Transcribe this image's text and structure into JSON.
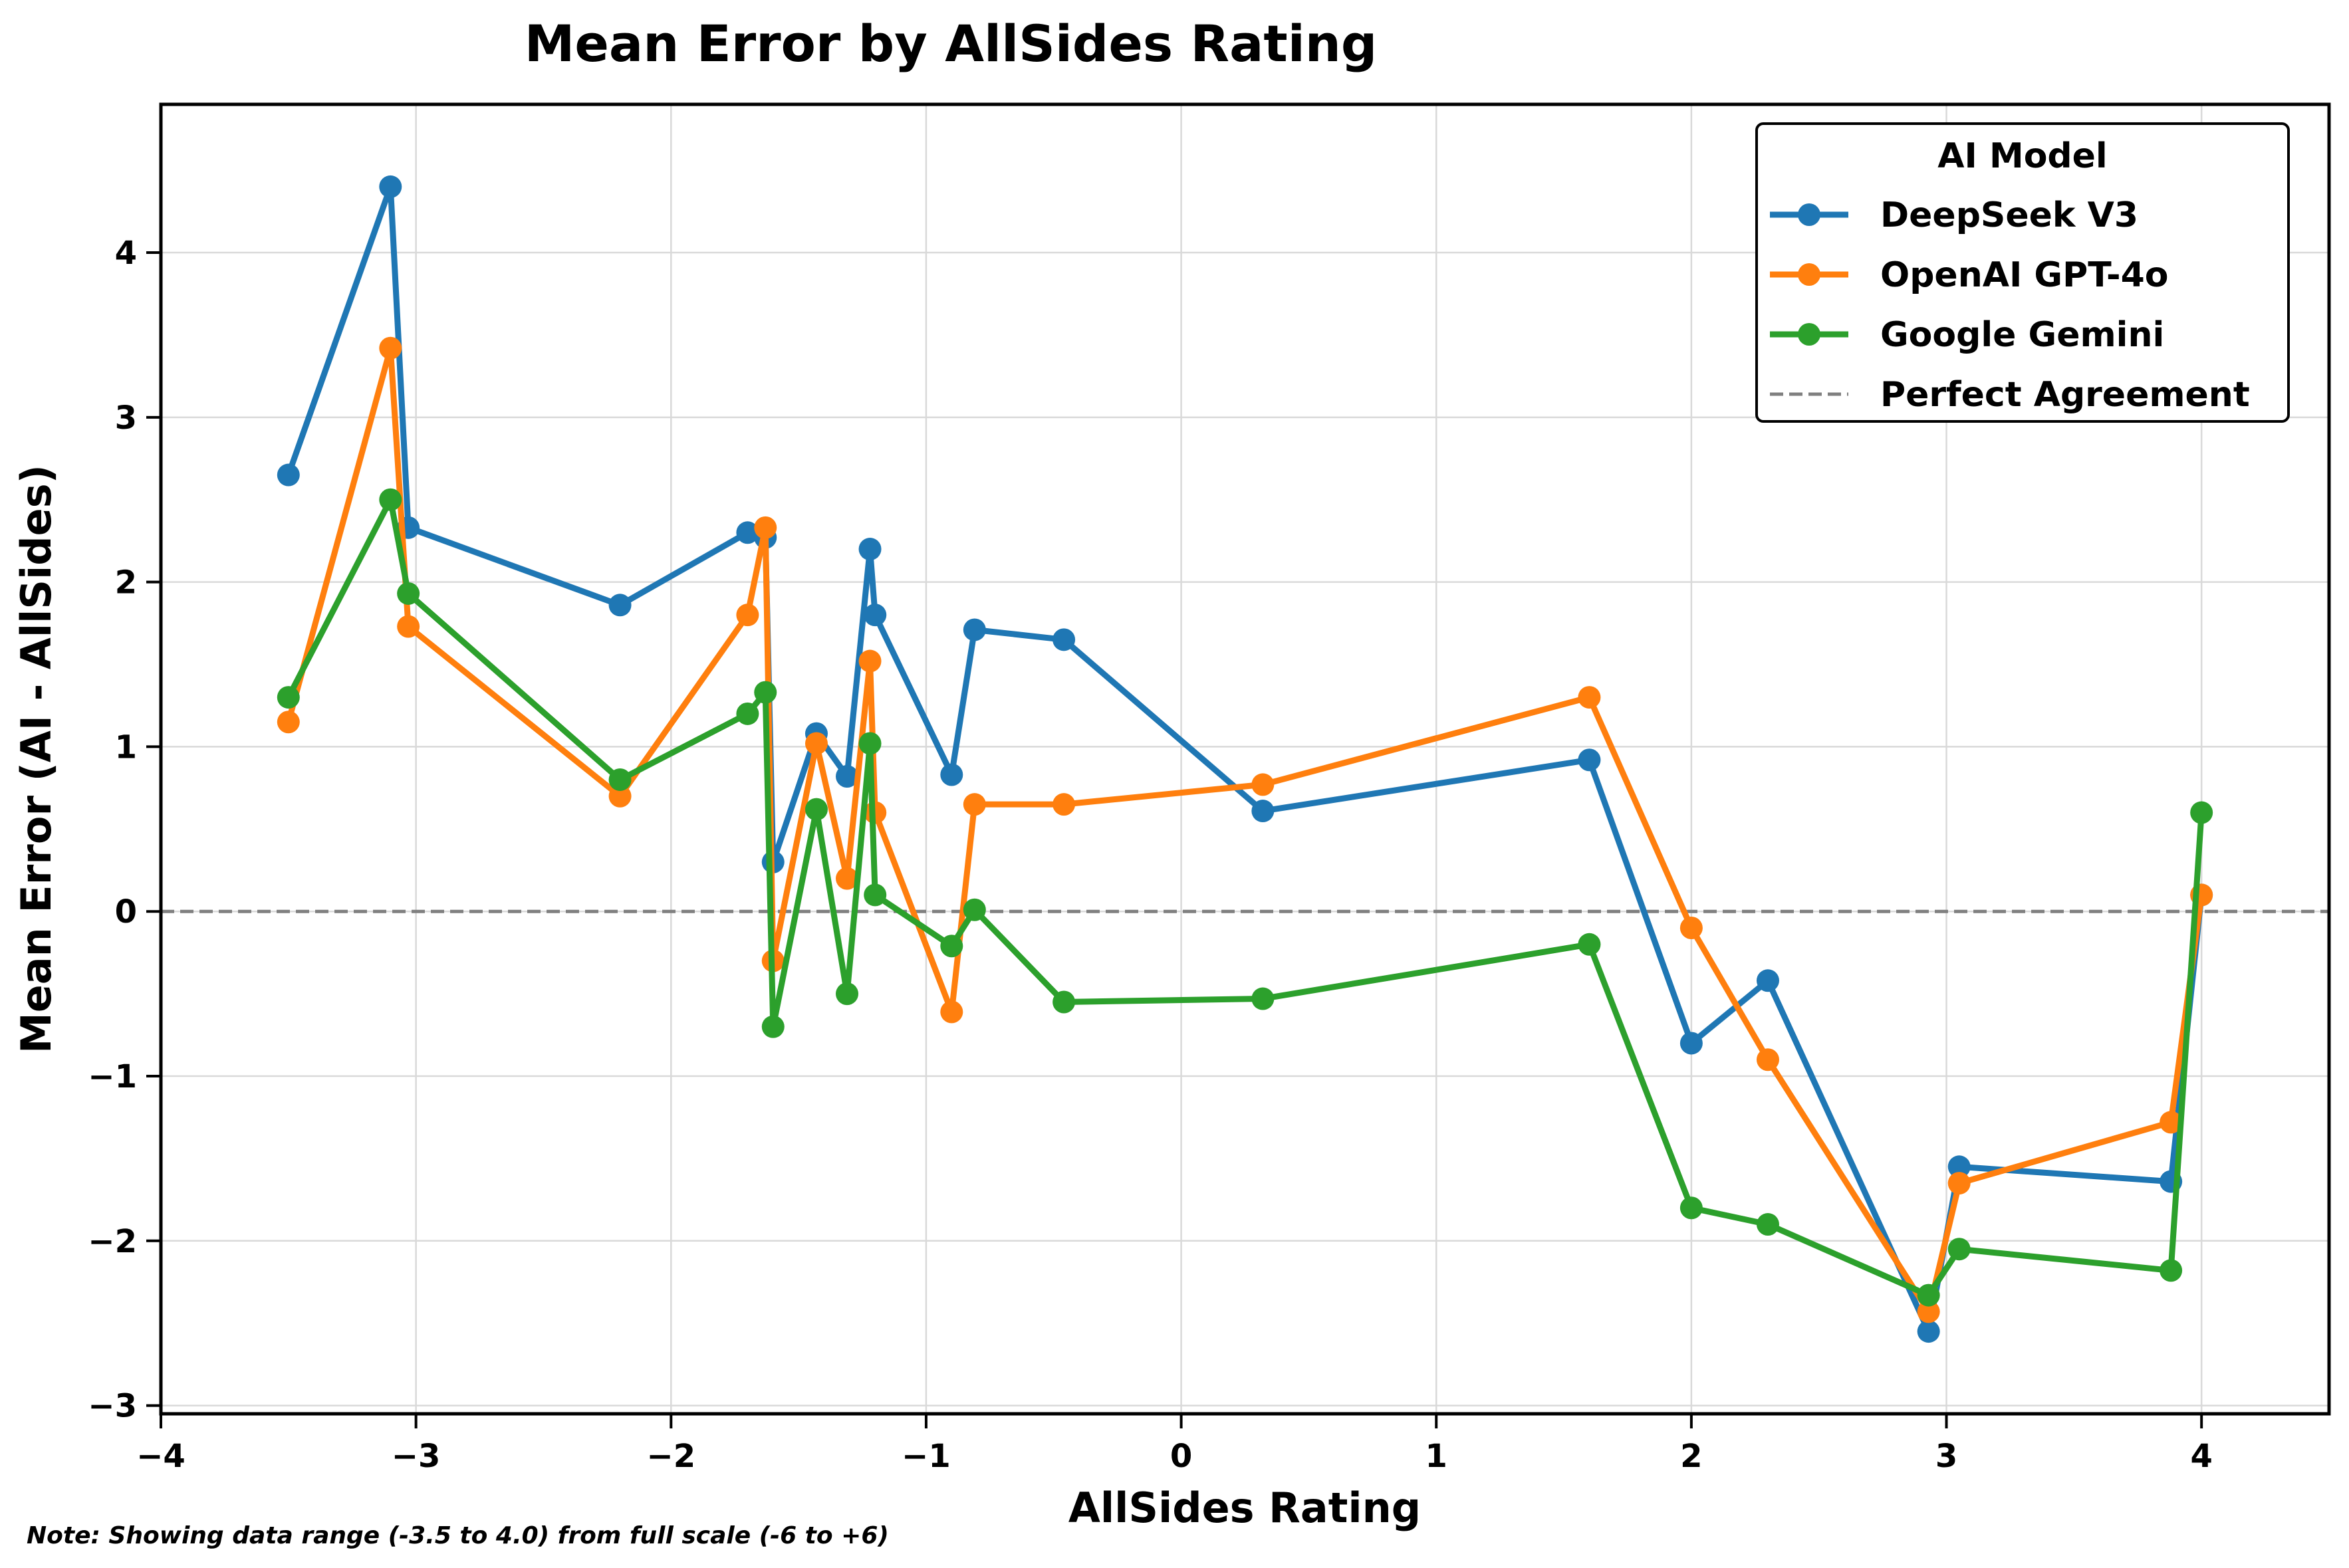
{
  "chart_data": {
    "type": "line",
    "title": "Mean Error by AllSides Rating",
    "xlabel": "AllSides Rating",
    "ylabel": "Mean Error (AI - AllSides)",
    "xlim": [
      -4,
      4.5
    ],
    "ylim": [
      -3.05,
      4.9
    ],
    "xticks": [
      -4,
      -3,
      -2,
      -1,
      0,
      1,
      2,
      3,
      4
    ],
    "yticks": [
      -3,
      -2,
      -1,
      0,
      1,
      2,
      3,
      4
    ],
    "xtick_labels": [
      "−4",
      "−3",
      "−2",
      "−1",
      "0",
      "1",
      "2",
      "3",
      "4"
    ],
    "ytick_labels": [
      "−3",
      "−2",
      "−1",
      "0",
      "1",
      "2",
      "3",
      "4"
    ],
    "grid": true,
    "legend": {
      "title": "AI Model",
      "placement": "top-right",
      "entries": [
        "DeepSeek V3",
        "OpenAI GPT-4o",
        "Google Gemini",
        "Perfect Agreement"
      ]
    },
    "reference_line": {
      "y": 0,
      "label": "Perfect Agreement",
      "color": "#808080",
      "style": "dashed"
    },
    "x": [
      -3.5,
      -3.1,
      -3.03,
      -2.2,
      -1.7,
      -1.63,
      -1.6,
      -1.43,
      -1.31,
      -1.22,
      -1.2,
      -0.9,
      -0.81,
      -0.46,
      0.32,
      1.6,
      2.0,
      2.3,
      2.93,
      3.05,
      3.88,
      4.0
    ],
    "series": [
      {
        "name": "DeepSeek V3",
        "color": "#1f77b4",
        "values": [
          2.65,
          4.4,
          2.33,
          1.86,
          2.3,
          2.27,
          0.3,
          1.08,
          0.82,
          2.2,
          1.8,
          0.83,
          1.71,
          1.65,
          0.61,
          0.92,
          -0.8,
          -0.42,
          -2.55,
          -1.55,
          -1.64,
          0.1
        ]
      },
      {
        "name": "OpenAI GPT-4o",
        "color": "#ff7f0e",
        "values": [
          1.15,
          3.42,
          1.73,
          0.7,
          1.8,
          2.33,
          -0.3,
          1.02,
          0.2,
          1.52,
          0.6,
          -0.61,
          0.65,
          0.65,
          0.77,
          1.3,
          -0.1,
          -0.9,
          -2.43,
          -1.65,
          -1.28,
          0.1
        ]
      },
      {
        "name": "Google Gemini",
        "color": "#2ca02c",
        "values": [
          1.3,
          2.5,
          1.93,
          0.8,
          1.2,
          1.33,
          -0.7,
          0.62,
          -0.5,
          1.02,
          0.1,
          -0.21,
          0.01,
          -0.55,
          -0.53,
          -0.2,
          -1.8,
          -1.9,
          -2.33,
          -2.05,
          -2.18,
          0.6
        ]
      }
    ],
    "note": "Note: Showing data range (-3.5 to 4.0) from full scale (-6 to +6)"
  }
}
